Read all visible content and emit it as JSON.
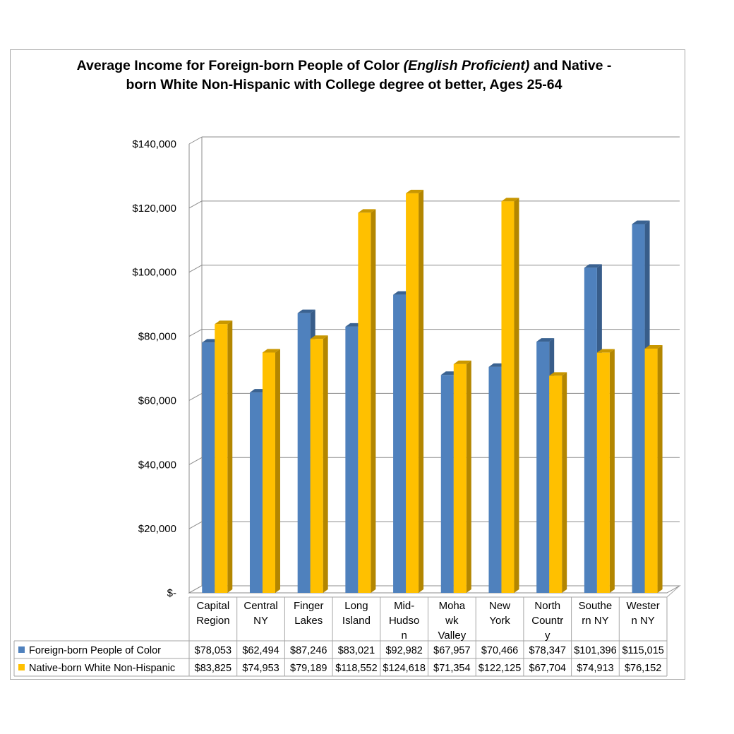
{
  "chart_data": {
    "type": "bar",
    "title_line1_a": "Average Income for Foreign-born People of Color ",
    "title_line1_italic": "(English Proficient)",
    "title_line1_b": "  and Native -",
    "title_line2": "born  White Non-Hispanic  with College degree ot better, Ages 25-64",
    "categories": [
      [
        "Capital",
        "Region"
      ],
      [
        "Central",
        "NY"
      ],
      [
        "Finger",
        "Lakes"
      ],
      [
        "Long",
        "Island"
      ],
      [
        "Mid-",
        "Hudso",
        "n"
      ],
      [
        "Moha",
        "wk",
        "Valley"
      ],
      [
        "New",
        "York"
      ],
      [
        "North",
        "Countr",
        "y"
      ],
      [
        "Southe",
        "rn NY"
      ],
      [
        "Wester",
        "n NY"
      ]
    ],
    "series": [
      {
        "name": "Foreign-born People of Color",
        "values": [
          78053,
          62494,
          87246,
          83021,
          92982,
          67957,
          70466,
          78347,
          101396,
          115015
        ],
        "labels": [
          "$78,053",
          "$62,494",
          "$87,246",
          "$83,021",
          "$92,982",
          "$67,957",
          "$70,466",
          "$78,347",
          "$101,396",
          "$115,015"
        ],
        "color": "#4f81bd",
        "side_color": "#385d8a",
        "top_color": "#3a6291"
      },
      {
        "name": "Native-born White Non-Hispanic",
        "values": [
          83825,
          74953,
          79189,
          118552,
          124618,
          71354,
          122125,
          67704,
          74913,
          76152
        ],
        "labels": [
          "$83,825",
          "$74,953",
          "$79,189",
          "$118,552",
          "$124,618",
          "$71,354",
          "$122,125",
          "$67,704",
          "$74,913",
          "$76,152"
        ],
        "color": "#ffc000",
        "side_color": "#b38600",
        "top_color": "#c99700"
      }
    ],
    "y_ticks": [
      {
        "value": 0,
        "label": "$-"
      },
      {
        "value": 20000,
        "label": "$20,000"
      },
      {
        "value": 40000,
        "label": "$40,000"
      },
      {
        "value": 60000,
        "label": "$60,000"
      },
      {
        "value": 80000,
        "label": "$80,000"
      },
      {
        "value": 100000,
        "label": "$100,000"
      },
      {
        "value": 120000,
        "label": "$120,000"
      },
      {
        "value": 140000,
        "label": "$140,000"
      }
    ],
    "ylim": [
      0,
      140000
    ],
    "grid": true,
    "legend": "data-table"
  }
}
